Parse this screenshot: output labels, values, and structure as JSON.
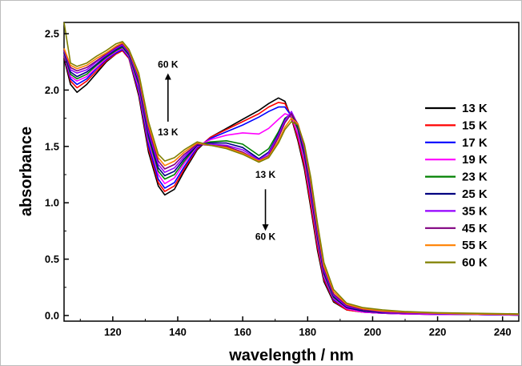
{
  "chart_data": {
    "type": "line",
    "xlabel": "wavelength / nm",
    "ylabel": "absorbance",
    "xlim": [
      105,
      245
    ],
    "ylim": [
      -0.05,
      2.6
    ],
    "xticks": [
      120,
      140,
      160,
      180,
      200,
      220,
      240
    ],
    "xtick_labels": [
      "120",
      "140",
      "160",
      "180",
      "200",
      "220",
      "240"
    ],
    "yticks": [
      0.0,
      0.5,
      1.0,
      1.5,
      2.0,
      2.5
    ],
    "ytick_labels": [
      "0.0",
      "0.5",
      "1.0",
      "1.5",
      "2.0",
      "2.5"
    ],
    "grid": false,
    "legend_position": "right",
    "annotations": [
      {
        "text": "60 K",
        "arrow": "up",
        "x": 137,
        "y_label": 2.2,
        "y_arrow_from": 1.72,
        "y_arrow_to": 2.12
      },
      {
        "text": "13 K",
        "x": 137,
        "y_label": 1.6
      },
      {
        "text": "13 K",
        "arrow": "down",
        "x": 167,
        "y_label": 1.22,
        "y_arrow_from": 1.12,
        "y_arrow_to": 0.78
      },
      {
        "text": "60 K",
        "x": 167,
        "y_label": 0.67
      }
    ],
    "x": [
      105,
      107,
      109,
      112,
      115,
      118,
      121,
      123,
      125,
      128,
      131,
      134,
      136,
      139,
      142,
      146,
      150,
      155,
      160,
      165,
      168,
      171,
      173,
      175,
      177,
      179,
      181,
      183,
      185,
      188,
      192,
      197,
      203,
      210,
      220,
      230,
      245
    ],
    "series": [
      {
        "name": "13 K",
        "color": "#000000",
        "values": [
          2.28,
          2.05,
          1.98,
          2.05,
          2.15,
          2.25,
          2.32,
          2.35,
          2.28,
          1.95,
          1.45,
          1.15,
          1.07,
          1.12,
          1.28,
          1.47,
          1.58,
          1.66,
          1.74,
          1.82,
          1.88,
          1.93,
          1.9,
          1.75,
          1.55,
          1.3,
          0.95,
          0.58,
          0.3,
          0.12,
          0.05,
          0.03,
          0.02,
          0.015,
          0.01,
          0.01,
          0.005
        ]
      },
      {
        "name": "15 K",
        "color": "#ff0000",
        "values": [
          2.3,
          2.08,
          2.02,
          2.08,
          2.17,
          2.26,
          2.32,
          2.35,
          2.28,
          1.97,
          1.48,
          1.18,
          1.1,
          1.15,
          1.3,
          1.48,
          1.58,
          1.65,
          1.72,
          1.79,
          1.85,
          1.89,
          1.88,
          1.76,
          1.57,
          1.33,
          0.98,
          0.61,
          0.32,
          0.13,
          0.05,
          0.03,
          0.02,
          0.015,
          0.01,
          0.01,
          0.005
        ]
      },
      {
        "name": "17 K",
        "color": "#0000ff",
        "values": [
          2.31,
          2.1,
          2.05,
          2.1,
          2.19,
          2.27,
          2.33,
          2.36,
          2.29,
          1.99,
          1.51,
          1.21,
          1.13,
          1.18,
          1.32,
          1.49,
          1.57,
          1.63,
          1.69,
          1.76,
          1.81,
          1.85,
          1.85,
          1.77,
          1.6,
          1.37,
          1.03,
          0.65,
          0.34,
          0.14,
          0.06,
          0.03,
          0.02,
          0.015,
          0.01,
          0.01,
          0.005
        ]
      },
      {
        "name": "19 K",
        "color": "#ff00ff",
        "values": [
          2.32,
          2.12,
          2.08,
          2.12,
          2.2,
          2.28,
          2.34,
          2.37,
          2.3,
          2.02,
          1.55,
          1.25,
          1.17,
          1.22,
          1.35,
          1.5,
          1.56,
          1.6,
          1.62,
          1.61,
          1.66,
          1.74,
          1.79,
          1.77,
          1.61,
          1.38,
          1.04,
          0.66,
          0.35,
          0.15,
          0.06,
          0.03,
          0.02,
          0.015,
          0.01,
          0.01,
          0.005
        ]
      },
      {
        "name": "23 K",
        "color": "#008000",
        "values": [
          2.33,
          2.14,
          2.1,
          2.14,
          2.22,
          2.29,
          2.35,
          2.38,
          2.31,
          2.05,
          1.58,
          1.28,
          1.21,
          1.25,
          1.37,
          1.51,
          1.54,
          1.55,
          1.52,
          1.42,
          1.48,
          1.63,
          1.75,
          1.79,
          1.65,
          1.42,
          1.08,
          0.69,
          0.37,
          0.16,
          0.07,
          0.04,
          0.025,
          0.02,
          0.015,
          0.01,
          0.005
        ]
      },
      {
        "name": "25 K",
        "color": "#000080",
        "values": [
          2.34,
          2.16,
          2.12,
          2.16,
          2.23,
          2.3,
          2.36,
          2.39,
          2.32,
          2.07,
          1.6,
          1.31,
          1.24,
          1.28,
          1.39,
          1.51,
          1.53,
          1.53,
          1.49,
          1.39,
          1.45,
          1.61,
          1.74,
          1.8,
          1.67,
          1.44,
          1.1,
          0.71,
          0.38,
          0.17,
          0.07,
          0.04,
          0.025,
          0.02,
          0.015,
          0.01,
          0.005
        ]
      },
      {
        "name": "35 K",
        "color": "#9400ff",
        "values": [
          2.35,
          2.18,
          2.15,
          2.18,
          2.25,
          2.31,
          2.37,
          2.4,
          2.33,
          2.09,
          1.63,
          1.34,
          1.27,
          1.31,
          1.41,
          1.52,
          1.52,
          1.51,
          1.47,
          1.38,
          1.44,
          1.6,
          1.73,
          1.81,
          1.69,
          1.47,
          1.13,
          0.73,
          0.4,
          0.18,
          0.08,
          0.05,
          0.03,
          0.02,
          0.015,
          0.01,
          0.005
        ]
      },
      {
        "name": "45 K",
        "color": "#800080",
        "values": [
          2.36,
          2.2,
          2.17,
          2.2,
          2.26,
          2.32,
          2.38,
          2.41,
          2.34,
          2.11,
          1.66,
          1.37,
          1.3,
          1.34,
          1.43,
          1.52,
          1.51,
          1.5,
          1.45,
          1.37,
          1.42,
          1.58,
          1.71,
          1.79,
          1.7,
          1.49,
          1.16,
          0.76,
          0.42,
          0.19,
          0.09,
          0.05,
          0.035,
          0.025,
          0.02,
          0.015,
          0.01
        ]
      },
      {
        "name": "55 K",
        "color": "#ff8000",
        "values": [
          2.37,
          2.22,
          2.19,
          2.22,
          2.28,
          2.33,
          2.39,
          2.42,
          2.35,
          2.13,
          1.69,
          1.4,
          1.33,
          1.37,
          1.45,
          1.53,
          1.51,
          1.49,
          1.44,
          1.37,
          1.41,
          1.55,
          1.67,
          1.75,
          1.7,
          1.51,
          1.19,
          0.79,
          0.44,
          0.21,
          0.1,
          0.06,
          0.04,
          0.03,
          0.02,
          0.015,
          0.01
        ]
      },
      {
        "name": "60 K",
        "color": "#808000",
        "values": [
          2.6,
          2.24,
          2.21,
          2.24,
          2.3,
          2.35,
          2.41,
          2.43,
          2.36,
          2.15,
          1.72,
          1.43,
          1.37,
          1.4,
          1.47,
          1.54,
          1.51,
          1.48,
          1.43,
          1.36,
          1.4,
          1.53,
          1.65,
          1.72,
          1.69,
          1.52,
          1.22,
          0.82,
          0.47,
          0.23,
          0.11,
          0.07,
          0.05,
          0.035,
          0.025,
          0.02,
          0.015
        ]
      }
    ]
  }
}
